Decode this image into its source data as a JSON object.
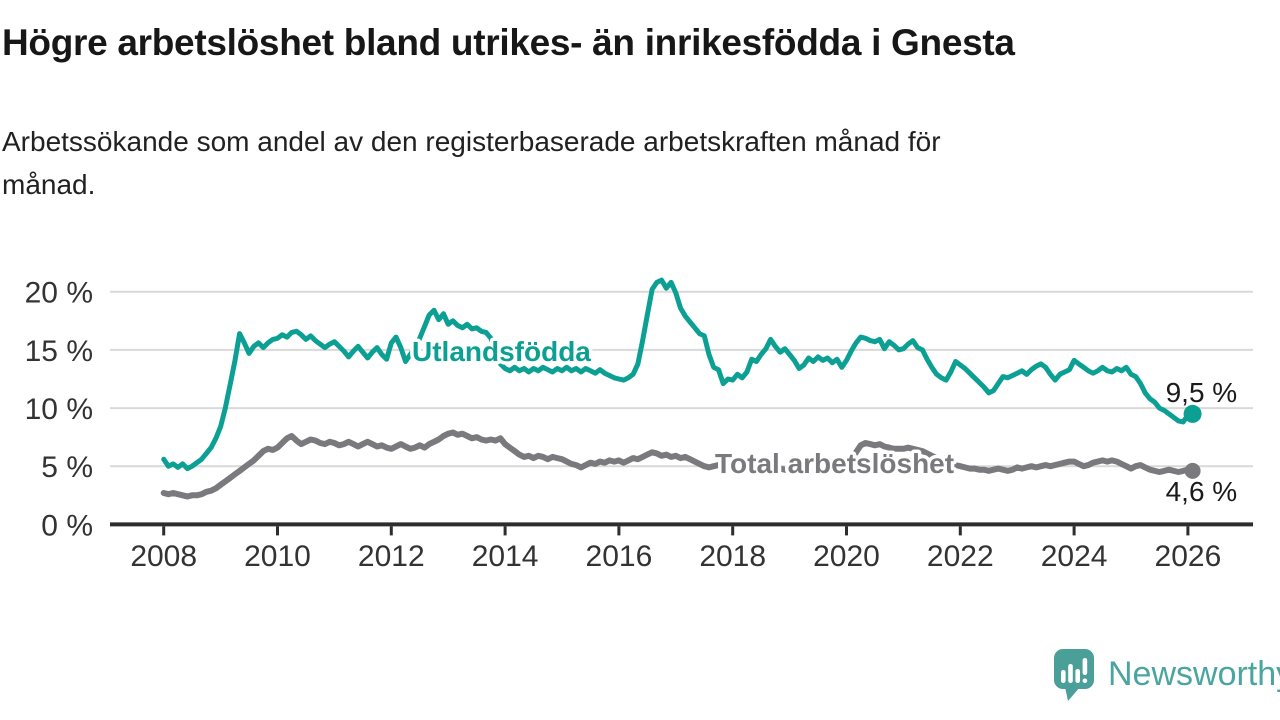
{
  "header": {
    "title": "Högre arbetslöshet bland utrikes- än inrikesfödda i Gnesta",
    "subtitle_line1": "Arbetssökande som andel av den registerbaserade arbetskraften månad för",
    "subtitle_line2": "månad."
  },
  "chart_data": {
    "type": "line",
    "unit": "%",
    "frequency": "monthly",
    "x_start": "2008-01",
    "x_end": "2026-02",
    "ylim": [
      0,
      22
    ],
    "grid": "horizontal",
    "x_tick_labels": [
      "2008",
      "2010",
      "2012",
      "2014",
      "2016",
      "2018",
      "2020",
      "2022",
      "2024",
      "2026"
    ],
    "y_ticks": [
      {
        "value": 0,
        "label": "0 %"
      },
      {
        "value": 5,
        "label": "5 %"
      },
      {
        "value": 10,
        "label": "10 %"
      },
      {
        "value": 15,
        "label": "15 %"
      },
      {
        "value": 20,
        "label": "20 %"
      }
    ],
    "series": [
      {
        "id": "utlandsfodda",
        "name": "Utlandsfödda",
        "color": "#0ba093",
        "end_label": "9,5 %",
        "values": [
          5.6,
          5.0,
          5.2,
          4.9,
          5.2,
          4.8,
          5.0,
          5.3,
          5.6,
          6.1,
          6.6,
          7.4,
          8.4,
          10.0,
          12.0,
          14.0,
          16.4,
          15.6,
          14.7,
          15.3,
          15.6,
          15.2,
          15.6,
          15.9,
          16.0,
          16.3,
          16.1,
          16.5,
          16.6,
          16.3,
          15.9,
          16.2,
          15.8,
          15.5,
          15.2,
          15.5,
          15.7,
          15.3,
          14.9,
          14.4,
          14.9,
          15.3,
          14.8,
          14.3,
          14.8,
          15.2,
          14.6,
          14.2,
          15.6,
          16.1,
          15.2,
          14.0,
          14.6,
          15.2,
          16.0,
          17.0,
          18.0,
          18.4,
          17.6,
          18.1,
          17.2,
          17.5,
          17.1,
          16.9,
          17.2,
          16.8,
          16.9,
          16.6,
          16.5,
          16.0,
          14.8,
          13.8,
          13.4,
          13.2,
          13.5,
          13.2,
          13.4,
          13.1,
          13.4,
          13.2,
          13.5,
          13.3,
          13.1,
          13.4,
          13.2,
          13.5,
          13.2,
          13.4,
          13.1,
          13.4,
          13.2,
          13.0,
          13.3,
          13.0,
          12.8,
          12.6,
          12.5,
          12.4,
          12.6,
          12.9,
          13.8,
          15.8,
          18.0,
          20.2,
          20.8,
          21.0,
          20.3,
          20.8,
          19.9,
          18.6,
          17.9,
          17.4,
          16.9,
          16.4,
          16.2,
          14.6,
          13.5,
          13.3,
          12.1,
          12.5,
          12.4,
          12.9,
          12.6,
          13.1,
          14.2,
          14.0,
          14.6,
          15.1,
          15.9,
          15.3,
          14.8,
          15.1,
          14.6,
          14.1,
          13.4,
          13.7,
          14.3,
          14.0,
          14.4,
          14.1,
          14.3,
          13.9,
          14.2,
          13.5,
          14.1,
          14.9,
          15.6,
          16.1,
          16.0,
          15.8,
          15.7,
          15.9,
          15.1,
          15.7,
          15.4,
          15.0,
          15.1,
          15.5,
          15.8,
          15.2,
          15.0,
          14.2,
          13.5,
          12.9,
          12.6,
          12.4,
          13.1,
          14.0,
          13.7,
          13.4,
          13.0,
          12.6,
          12.2,
          11.8,
          11.3,
          11.5,
          12.1,
          12.7,
          12.6,
          12.8,
          13.0,
          13.2,
          12.9,
          13.3,
          13.6,
          13.8,
          13.5,
          12.9,
          12.4,
          12.9,
          13.1,
          13.3,
          14.1,
          13.8,
          13.5,
          13.2,
          13.0,
          13.2,
          13.5,
          13.2,
          13.1,
          13.4,
          13.2,
          13.5,
          12.9,
          12.7,
          12.1,
          11.3,
          10.8,
          10.5,
          10.0,
          9.8,
          9.5,
          9.2,
          8.9,
          8.8,
          9.4,
          9.5
        ]
      },
      {
        "id": "total",
        "name": "Total arbetslöshet",
        "color": "#7a7a7e",
        "end_label": "4,6 %",
        "values": [
          2.7,
          2.6,
          2.7,
          2.6,
          2.5,
          2.4,
          2.5,
          2.5,
          2.6,
          2.8,
          2.9,
          3.1,
          3.4,
          3.7,
          4.0,
          4.3,
          4.6,
          4.9,
          5.2,
          5.5,
          5.9,
          6.3,
          6.5,
          6.4,
          6.6,
          7.0,
          7.4,
          7.6,
          7.2,
          6.9,
          7.1,
          7.3,
          7.2,
          7.0,
          6.9,
          7.1,
          7.0,
          6.8,
          6.9,
          7.1,
          6.9,
          6.7,
          6.9,
          7.1,
          6.9,
          6.7,
          6.8,
          6.6,
          6.5,
          6.7,
          6.9,
          6.7,
          6.5,
          6.6,
          6.8,
          6.6,
          6.9,
          7.1,
          7.3,
          7.6,
          7.8,
          7.9,
          7.7,
          7.8,
          7.6,
          7.4,
          7.5,
          7.3,
          7.2,
          7.3,
          7.2,
          7.4,
          6.9,
          6.6,
          6.3,
          6.0,
          5.8,
          5.9,
          5.7,
          5.9,
          5.8,
          5.6,
          5.8,
          5.7,
          5.6,
          5.4,
          5.2,
          5.1,
          4.9,
          5.1,
          5.3,
          5.2,
          5.4,
          5.3,
          5.5,
          5.4,
          5.5,
          5.3,
          5.5,
          5.7,
          5.6,
          5.8,
          6.0,
          6.2,
          6.1,
          5.9,
          6.0,
          5.8,
          5.9,
          5.7,
          5.8,
          5.6,
          5.4,
          5.2,
          5.0,
          4.9,
          5.0,
          5.1,
          5.0,
          5.0,
          5.0,
          4.9,
          4.8,
          4.9,
          4.8,
          4.7,
          4.8,
          4.7,
          4.6,
          4.7,
          4.8,
          4.7,
          4.6,
          4.7,
          4.6,
          4.5,
          4.6,
          4.7,
          4.6,
          4.7,
          4.8,
          4.7,
          4.8,
          4.9,
          5.1,
          5.5,
          6.2,
          6.8,
          7.0,
          6.9,
          6.8,
          6.9,
          6.7,
          6.6,
          6.5,
          6.5,
          6.5,
          6.6,
          6.5,
          6.4,
          6.3,
          6.1,
          5.9,
          5.7,
          5.5,
          5.3,
          5.2,
          5.1,
          5.0,
          4.9,
          4.8,
          4.8,
          4.7,
          4.7,
          4.6,
          4.7,
          4.8,
          4.7,
          4.6,
          4.7,
          4.9,
          4.8,
          4.9,
          5.0,
          4.9,
          5.0,
          5.1,
          5.0,
          5.1,
          5.2,
          5.3,
          5.4,
          5.4,
          5.2,
          5.0,
          5.1,
          5.3,
          5.4,
          5.5,
          5.4,
          5.5,
          5.4,
          5.2,
          5.0,
          4.8,
          5.0,
          5.1,
          4.9,
          4.7,
          4.6,
          4.5,
          4.6,
          4.7,
          4.6,
          4.5,
          4.6,
          4.7,
          4.6
        ]
      }
    ]
  },
  "footer": {
    "brand": "Newsworthy",
    "brand_color": "#4aa5a0",
    "icon": "newsworthy-speech-bubble-chart-icon"
  }
}
